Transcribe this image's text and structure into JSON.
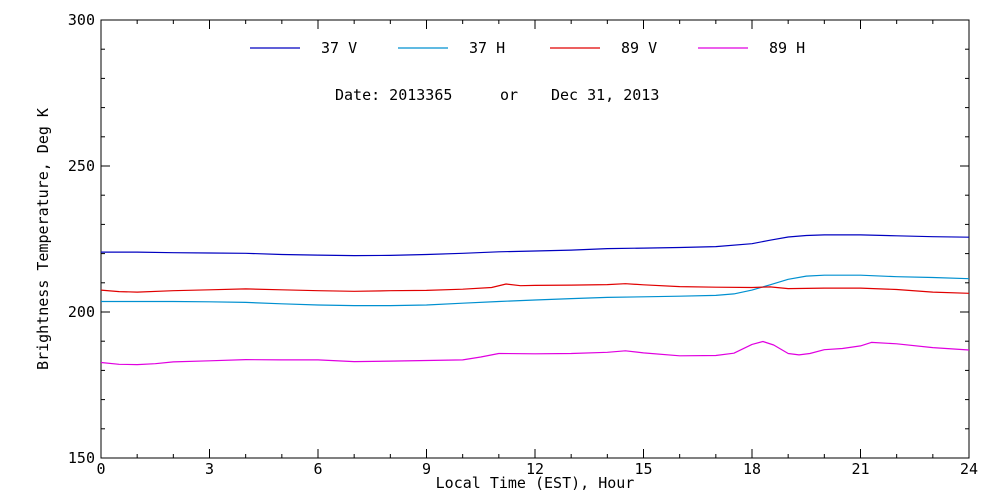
{
  "chart_data": {
    "type": "line",
    "xlabel": "Local Time (EST), Hour",
    "ylabel": "Brightness Temperature, Deg K",
    "xlim": [
      0,
      24
    ],
    "ylim": [
      150,
      300
    ],
    "x_ticks": [
      0,
      3,
      6,
      9,
      12,
      15,
      18,
      21,
      24
    ],
    "y_ticks": [
      150,
      200,
      250,
      300
    ],
    "grid": false,
    "legend_position": "top",
    "annotation": {
      "date_label": "Date: 2013365",
      "or_label": "or",
      "date_text": "Dec 31, 2013"
    },
    "series": [
      {
        "name": "37 V",
        "color": "#0000c0",
        "x": [
          0,
          1,
          2,
          3,
          4,
          5,
          6,
          7,
          8,
          9,
          10,
          11,
          12,
          13,
          14,
          15,
          16,
          17,
          18,
          18.5,
          19,
          19.5,
          20,
          21,
          22,
          23,
          24
        ],
        "y": [
          220.5,
          220.5,
          220.3,
          220.2,
          220.1,
          219.7,
          219.5,
          219.3,
          219.4,
          219.7,
          220.1,
          220.6,
          220.9,
          221.2,
          221.7,
          221.9,
          222.1,
          222.4,
          223.4,
          224.6,
          225.7,
          226.2,
          226.4,
          226.4,
          226.1,
          225.8,
          225.6
        ]
      },
      {
        "name": "37 H",
        "color": "#0090d0",
        "x": [
          0,
          1,
          2,
          3,
          4,
          5,
          6,
          7,
          8,
          9,
          10,
          11,
          12,
          13,
          14,
          15,
          16,
          17,
          17.5,
          18,
          18.5,
          19,
          19.5,
          20,
          21,
          22,
          23,
          24
        ],
        "y": [
          203.6,
          203.6,
          203.6,
          203.5,
          203.3,
          202.8,
          202.4,
          202.2,
          202.2,
          202.4,
          203.0,
          203.6,
          204.1,
          204.6,
          205.0,
          205.2,
          205.4,
          205.7,
          206.2,
          207.5,
          209.3,
          211.2,
          212.3,
          212.6,
          212.6,
          212.1,
          211.8,
          211.4
        ]
      },
      {
        "name": "89 V",
        "color": "#e00000",
        "x": [
          0,
          0.5,
          1,
          2,
          3,
          4,
          5,
          6,
          7,
          8,
          9,
          10,
          10.8,
          11.2,
          11.6,
          12,
          13,
          14,
          14.5,
          15,
          16,
          17,
          18,
          18.5,
          19,
          20,
          21,
          22,
          23,
          24
        ],
        "y": [
          207.5,
          207.0,
          206.8,
          207.3,
          207.6,
          207.9,
          207.6,
          207.3,
          207.1,
          207.3,
          207.4,
          207.8,
          208.4,
          209.6,
          209.0,
          209.1,
          209.2,
          209.4,
          209.7,
          209.3,
          208.7,
          208.5,
          208.4,
          208.6,
          208.0,
          208.2,
          208.2,
          207.7,
          206.8,
          206.4
        ]
      },
      {
        "name": "89 H",
        "color": "#e000e0",
        "x": [
          0,
          0.5,
          1,
          1.5,
          2,
          3,
          4,
          5,
          6,
          7,
          8,
          9,
          10,
          10.5,
          11,
          12,
          13,
          14,
          14.5,
          15,
          16,
          17,
          17.5,
          18,
          18.3,
          18.6,
          19,
          19.3,
          19.6,
          20,
          20.5,
          21,
          21.3,
          22,
          23,
          24
        ],
        "y": [
          182.7,
          182.1,
          182.0,
          182.3,
          182.9,
          183.3,
          183.7,
          183.6,
          183.6,
          183.0,
          183.2,
          183.4,
          183.6,
          184.6,
          185.8,
          185.7,
          185.8,
          186.2,
          186.7,
          186.0,
          185.0,
          185.1,
          185.9,
          188.9,
          189.9,
          188.7,
          185.8,
          185.3,
          185.8,
          187.1,
          187.5,
          188.4,
          189.6,
          189.1,
          187.8,
          187.0
        ]
      }
    ]
  }
}
